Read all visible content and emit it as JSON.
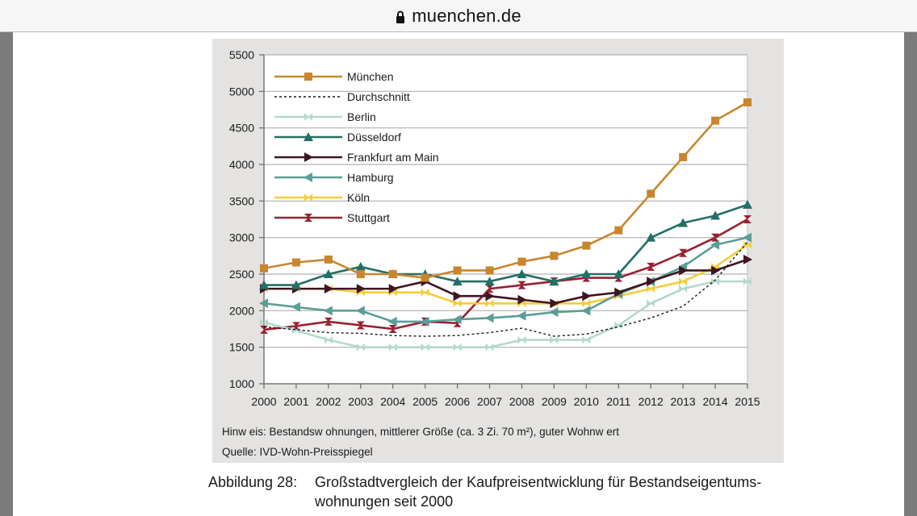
{
  "browser": {
    "url": "muenchen.de",
    "lock_icon": "lock-icon"
  },
  "figure": {
    "note": "Hinw eis: Bestandsw ohnungen, mittlerer Größe (ca. 3 Zi. 70 m²), guter Wohnw ert",
    "source": "Quelle: IVD-Wohn-Preisspiegel",
    "caption_label": "Abbildung 28:",
    "caption_text": "Großstadtvergleich der Kaufpreisentwicklung für Bestandseigentums-wohnungen seit 2000"
  },
  "chart_data": {
    "type": "line",
    "title": "",
    "xlabel": "",
    "ylabel": "",
    "x": [
      "2000",
      "2001",
      "2002",
      "2003",
      "2004",
      "2005",
      "2006",
      "2007",
      "2008",
      "2009",
      "2010",
      "2011",
      "2012",
      "2013",
      "2014",
      "2015"
    ],
    "ylim": [
      1000,
      5500
    ],
    "yticks": [
      1000,
      1500,
      2000,
      2500,
      3000,
      3500,
      4000,
      4500,
      5000,
      5500
    ],
    "grid": "horizontal",
    "legend_position": "top-left",
    "series": [
      {
        "name": "München",
        "color": "#c8862e",
        "marker": "square",
        "dashed": false,
        "values": [
          2580,
          2660,
          2700,
          2500,
          2500,
          2450,
          2550,
          2550,
          2670,
          2750,
          2890,
          3100,
          3600,
          4100,
          4600,
          4850
        ]
      },
      {
        "name": "Durchschnitt",
        "color": "#1a1a1a",
        "marker": "none",
        "dashed": true,
        "values": [
          1780,
          1740,
          1700,
          1690,
          1660,
          1650,
          1660,
          1700,
          1760,
          1650,
          1680,
          1780,
          1900,
          2060,
          2420,
          2940
        ]
      },
      {
        "name": "Berlin",
        "color": "#b5d9cc",
        "marker": "bowtie",
        "dashed": false,
        "values": [
          1840,
          1730,
          1600,
          1500,
          1500,
          1500,
          1500,
          1500,
          1600,
          1600,
          1600,
          1800,
          2100,
          2300,
          2400,
          2400
        ]
      },
      {
        "name": "Düsseldorf",
        "color": "#236f66",
        "marker": "triangle-up",
        "dashed": false,
        "values": [
          2350,
          2350,
          2500,
          2600,
          2500,
          2500,
          2400,
          2400,
          2500,
          2400,
          2500,
          2500,
          3000,
          3200,
          3300,
          3450
        ]
      },
      {
        "name": "Frankfurt am Main",
        "color": "#3e1520",
        "marker": "triangle-right",
        "dashed": false,
        "values": [
          2300,
          2300,
          2300,
          2300,
          2300,
          2400,
          2200,
          2200,
          2150,
          2100,
          2200,
          2250,
          2400,
          2550,
          2550,
          2700
        ]
      },
      {
        "name": "Hamburg",
        "color": "#5a9e98",
        "marker": "triangle-left",
        "dashed": false,
        "values": [
          2100,
          2050,
          2000,
          2000,
          1850,
          1850,
          1880,
          1900,
          1930,
          1980,
          2000,
          2230,
          2400,
          2600,
          2900,
          3000
        ]
      },
      {
        "name": "Köln",
        "color": "#f5cd3a",
        "marker": "bowtie",
        "dashed": false,
        "values": [
          2300,
          2300,
          2300,
          2250,
          2250,
          2250,
          2100,
          2100,
          2100,
          2100,
          2100,
          2200,
          2300,
          2400,
          2600,
          2900
        ]
      },
      {
        "name": "Stuttgart",
        "color": "#98202f",
        "marker": "hourglass",
        "dashed": false,
        "values": [
          1740,
          1790,
          1850,
          1800,
          1750,
          1850,
          1830,
          2300,
          2350,
          2400,
          2450,
          2450,
          2600,
          2790,
          3000,
          3250
        ]
      }
    ]
  }
}
